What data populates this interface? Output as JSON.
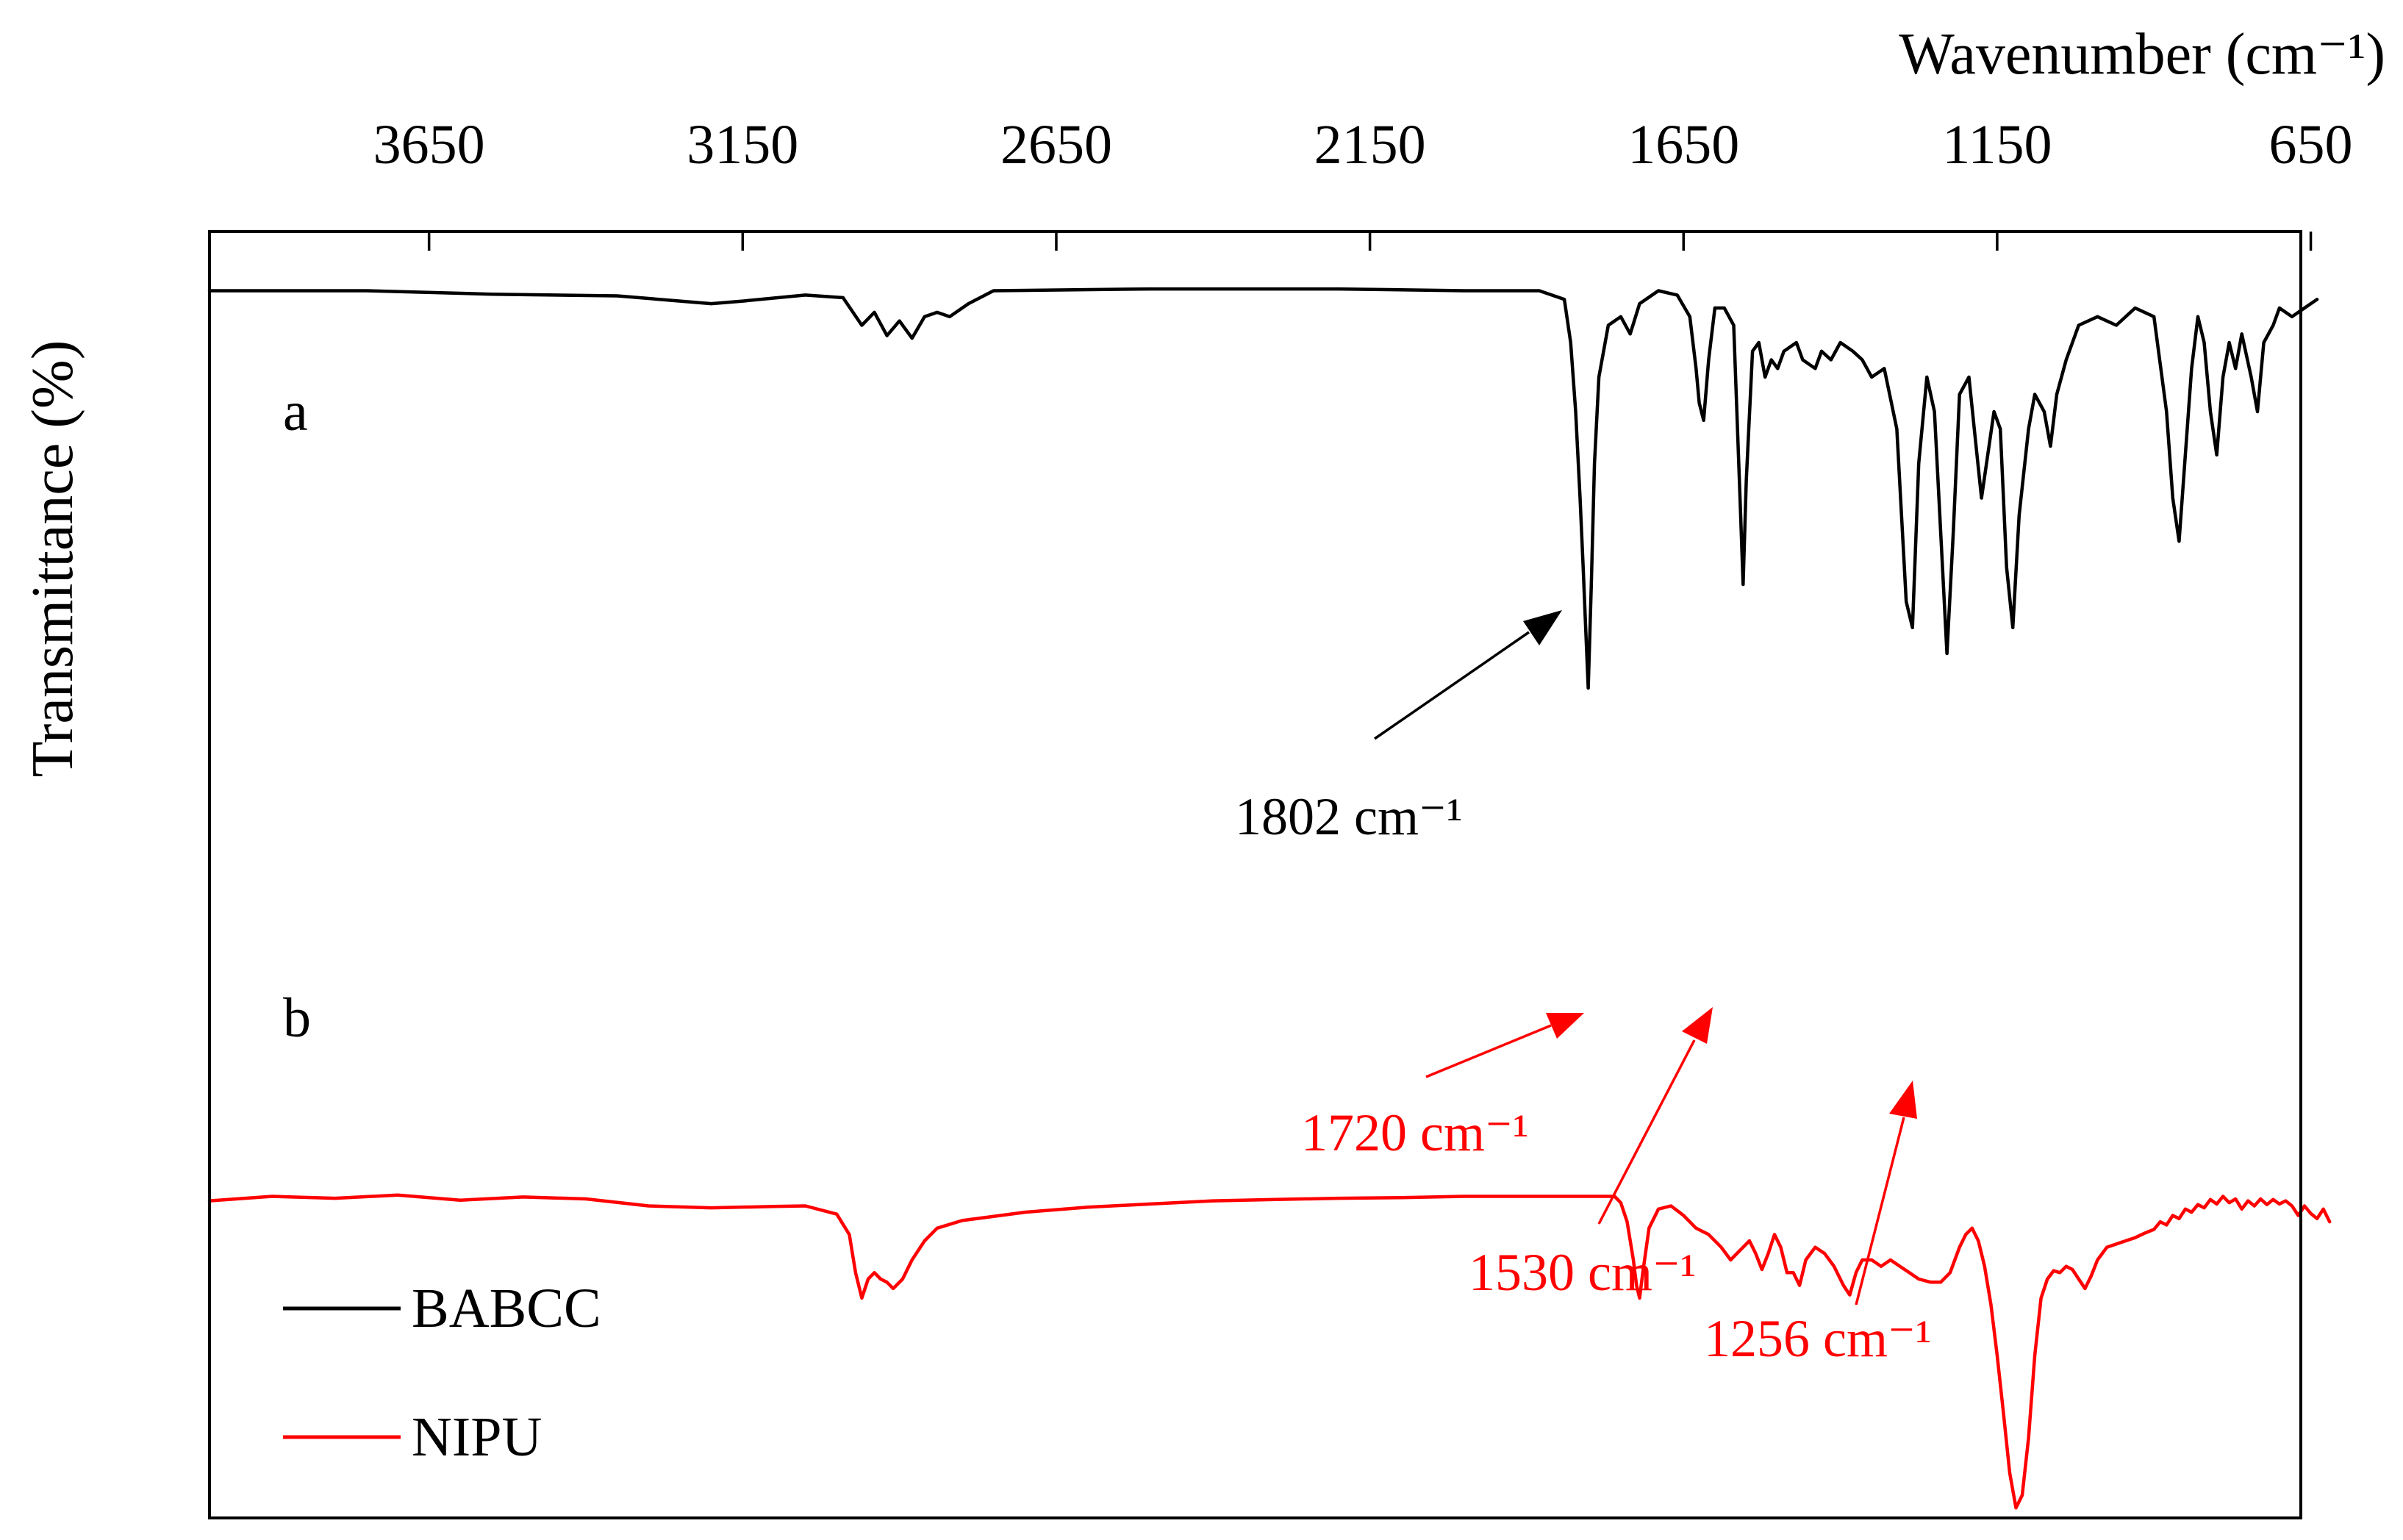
{
  "chart_data": {
    "type": "line",
    "title": "",
    "xlabel": "Wavenumber (cm⁻¹)",
    "ylabel": "Transmittance (%)",
    "x_axis_position": "top",
    "x_reversed": true,
    "xlim": [
      4000,
      600
    ],
    "ylim": [
      0,
      100
    ],
    "xticks": [
      3650,
      3150,
      2650,
      2150,
      1650,
      1150,
      650
    ],
    "grid": false,
    "legend_position": "bottom-left",
    "series": [
      {
        "name": "BABCC",
        "label": "a",
        "color": "#000000",
        "points": [
          [
            4000,
            94
          ],
          [
            3750,
            94
          ],
          [
            3550,
            93.6
          ],
          [
            3350,
            93.4
          ],
          [
            3200,
            92.5
          ],
          [
            3150,
            92.8
          ],
          [
            3050,
            93.5
          ],
          [
            2990,
            93.2
          ],
          [
            2960,
            90
          ],
          [
            2940,
            91.5
          ],
          [
            2920,
            88.8
          ],
          [
            2900,
            90.5
          ],
          [
            2880,
            88.5
          ],
          [
            2860,
            91
          ],
          [
            2840,
            91.5
          ],
          [
            2820,
            91
          ],
          [
            2790,
            92.5
          ],
          [
            2750,
            94
          ],
          [
            2500,
            94.2
          ],
          [
            2200,
            94.2
          ],
          [
            2000,
            94
          ],
          [
            1880,
            94
          ],
          [
            1840,
            93
          ],
          [
            1830,
            88
          ],
          [
            1822,
            80
          ],
          [
            1815,
            70
          ],
          [
            1810,
            62
          ],
          [
            1806,
            55
          ],
          [
            1802,
            48
          ],
          [
            1797,
            60
          ],
          [
            1792,
            74
          ],
          [
            1785,
            84
          ],
          [
            1770,
            90
          ],
          [
            1750,
            91
          ],
          [
            1735,
            89
          ],
          [
            1720,
            92.5
          ],
          [
            1690,
            94
          ],
          [
            1660,
            93.5
          ],
          [
            1640,
            91
          ],
          [
            1630,
            85
          ],
          [
            1625,
            81
          ],
          [
            1618,
            79
          ],
          [
            1610,
            86
          ],
          [
            1600,
            92
          ],
          [
            1585,
            92
          ],
          [
            1570,
            90
          ],
          [
            1560,
            70
          ],
          [
            1555,
            60
          ],
          [
            1550,
            72
          ],
          [
            1540,
            87
          ],
          [
            1530,
            88
          ],
          [
            1520,
            84
          ],
          [
            1510,
            86
          ],
          [
            1500,
            85
          ],
          [
            1490,
            87
          ],
          [
            1470,
            88
          ],
          [
            1460,
            86
          ],
          [
            1440,
            85
          ],
          [
            1430,
            87
          ],
          [
            1415,
            86
          ],
          [
            1400,
            88
          ],
          [
            1380,
            87
          ],
          [
            1365,
            86
          ],
          [
            1350,
            84
          ],
          [
            1330,
            85
          ],
          [
            1310,
            78
          ],
          [
            1295,
            58
          ],
          [
            1285,
            55
          ],
          [
            1275,
            74
          ],
          [
            1262,
            84
          ],
          [
            1250,
            80
          ],
          [
            1240,
            66
          ],
          [
            1230,
            52
          ],
          [
            1220,
            66
          ],
          [
            1210,
            82
          ],
          [
            1195,
            84
          ],
          [
            1185,
            77
          ],
          [
            1175,
            70
          ],
          [
            1165,
            75
          ],
          [
            1155,
            80
          ],
          [
            1145,
            78
          ],
          [
            1135,
            62
          ],
          [
            1125,
            55
          ],
          [
            1115,
            68
          ],
          [
            1100,
            78
          ],
          [
            1090,
            82
          ],
          [
            1075,
            80
          ],
          [
            1065,
            76
          ],
          [
            1055,
            82
          ],
          [
            1040,
            86
          ],
          [
            1020,
            90
          ],
          [
            990,
            91
          ],
          [
            960,
            90
          ],
          [
            930,
            92
          ],
          [
            900,
            91
          ],
          [
            880,
            80
          ],
          [
            870,
            70
          ],
          [
            860,
            65
          ],
          [
            850,
            75
          ],
          [
            840,
            85
          ],
          [
            830,
            91
          ],
          [
            820,
            88
          ],
          [
            810,
            80
          ],
          [
            800,
            75
          ],
          [
            790,
            84
          ],
          [
            780,
            88
          ],
          [
            770,
            85
          ],
          [
            760,
            89
          ],
          [
            745,
            84
          ],
          [
            735,
            80
          ],
          [
            725,
            88
          ],
          [
            710,
            90
          ],
          [
            700,
            92
          ],
          [
            680,
            91
          ],
          [
            660,
            92
          ],
          [
            640,
            93
          ]
        ]
      },
      {
        "name": "NIPU",
        "label": "b",
        "color": "#ff0000",
        "points": [
          [
            4000,
            49.3
          ],
          [
            3900,
            50
          ],
          [
            3800,
            49.7
          ],
          [
            3700,
            50.2
          ],
          [
            3600,
            49.4
          ],
          [
            3500,
            49.9
          ],
          [
            3400,
            49.6
          ],
          [
            3300,
            48.5
          ],
          [
            3200,
            48.2
          ],
          [
            3100,
            48.4
          ],
          [
            3050,
            48.5
          ],
          [
            3000,
            47.2
          ],
          [
            2980,
            44
          ],
          [
            2970,
            38
          ],
          [
            2960,
            34
          ],
          [
            2950,
            37
          ],
          [
            2940,
            38
          ],
          [
            2930,
            37
          ],
          [
            2920,
            36.5
          ],
          [
            2910,
            35.5
          ],
          [
            2895,
            37
          ],
          [
            2880,
            40
          ],
          [
            2860,
            43
          ],
          [
            2840,
            45
          ],
          [
            2800,
            46.2
          ],
          [
            2700,
            47.5
          ],
          [
            2600,
            48.3
          ],
          [
            2500,
            48.8
          ],
          [
            2400,
            49.3
          ],
          [
            2300,
            49.5
          ],
          [
            2200,
            49.7
          ],
          [
            2100,
            49.8
          ],
          [
            2000,
            50
          ],
          [
            1900,
            50
          ],
          [
            1800,
            50
          ],
          [
            1760,
            50
          ],
          [
            1750,
            49
          ],
          [
            1740,
            46
          ],
          [
            1730,
            40
          ],
          [
            1725,
            36
          ],
          [
            1720,
            34
          ],
          [
            1715,
            38
          ],
          [
            1705,
            45
          ],
          [
            1690,
            48
          ],
          [
            1670,
            48.5
          ],
          [
            1650,
            47
          ],
          [
            1630,
            45
          ],
          [
            1610,
            44
          ],
          [
            1590,
            42
          ],
          [
            1575,
            40
          ],
          [
            1565,
            41
          ],
          [
            1555,
            42
          ],
          [
            1545,
            43
          ],
          [
            1535,
            41
          ],
          [
            1525,
            38.5
          ],
          [
            1515,
            41
          ],
          [
            1505,
            44
          ],
          [
            1495,
            42
          ],
          [
            1485,
            38
          ],
          [
            1475,
            38
          ],
          [
            1465,
            36
          ],
          [
            1455,
            40
          ],
          [
            1440,
            42
          ],
          [
            1425,
            41
          ],
          [
            1410,
            39
          ],
          [
            1395,
            36
          ],
          [
            1385,
            34.5
          ],
          [
            1375,
            38
          ],
          [
            1365,
            40
          ],
          [
            1350,
            40
          ],
          [
            1335,
            39
          ],
          [
            1320,
            40
          ],
          [
            1305,
            39
          ],
          [
            1290,
            38
          ],
          [
            1275,
            37
          ],
          [
            1256,
            36.5
          ],
          [
            1240,
            36.5
          ],
          [
            1225,
            38
          ],
          [
            1210,
            42
          ],
          [
            1200,
            44
          ],
          [
            1190,
            45
          ],
          [
            1180,
            43
          ],
          [
            1170,
            39
          ],
          [
            1160,
            33
          ],
          [
            1150,
            25
          ],
          [
            1140,
            16
          ],
          [
            1130,
            6.5
          ],
          [
            1120,
            1
          ],
          [
            1110,
            3
          ],
          [
            1100,
            12
          ],
          [
            1090,
            25
          ],
          [
            1080,
            34
          ],
          [
            1070,
            37
          ],
          [
            1060,
            38.3
          ],
          [
            1050,
            38
          ],
          [
            1040,
            39
          ],
          [
            1030,
            38.5
          ],
          [
            1020,
            37
          ],
          [
            1010,
            35.5
          ],
          [
            1000,
            37.5
          ],
          [
            990,
            40
          ],
          [
            975,
            42
          ],
          [
            960,
            42.5
          ],
          [
            945,
            43
          ],
          [
            930,
            43.5
          ],
          [
            915,
            44.2
          ],
          [
            900,
            44.8
          ],
          [
            890,
            46
          ],
          [
            880,
            45.5
          ],
          [
            870,
            47
          ],
          [
            860,
            46.5
          ],
          [
            850,
            48
          ],
          [
            840,
            47.5
          ],
          [
            830,
            48.7
          ],
          [
            820,
            48.2
          ],
          [
            810,
            49.5
          ],
          [
            800,
            48.8
          ],
          [
            790,
            50
          ],
          [
            780,
            49
          ],
          [
            770,
            49.6
          ],
          [
            760,
            48
          ],
          [
            750,
            49.3
          ],
          [
            740,
            48.5
          ],
          [
            730,
            49.6
          ],
          [
            720,
            48.7
          ],
          [
            710,
            49.5
          ],
          [
            700,
            48.8
          ],
          [
            690,
            49.3
          ],
          [
            680,
            48.5
          ],
          [
            670,
            47
          ],
          [
            660,
            48.5
          ],
          [
            650,
            47.3
          ],
          [
            640,
            46.5
          ],
          [
            630,
            48
          ],
          [
            620,
            46
          ]
        ]
      }
    ],
    "annotations": [
      {
        "text": "1802 cm⁻¹",
        "series": "BABCC",
        "color": "#000000"
      },
      {
        "text": "1720 cm⁻¹",
        "series": "NIPU",
        "color": "#ff0000"
      },
      {
        "text": "1530 cm⁻¹",
        "series": "NIPU",
        "color": "#ff0000"
      },
      {
        "text": "1256 cm⁻¹",
        "series": "NIPU",
        "color": "#ff0000"
      }
    ]
  }
}
